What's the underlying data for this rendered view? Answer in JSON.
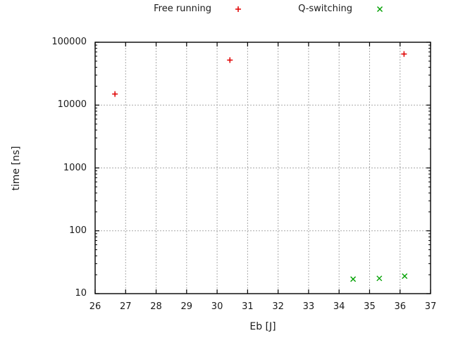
{
  "chart_data": {
    "type": "scatter",
    "title": "",
    "xlabel": "Eb [J]",
    "ylabel": "time [ns]",
    "xlim": [
      26,
      37
    ],
    "ylim": [
      10,
      100000
    ],
    "xscale": "linear",
    "yscale": "log",
    "x_ticks": [
      26,
      27,
      28,
      29,
      30,
      31,
      32,
      33,
      34,
      35,
      36,
      37
    ],
    "y_ticks": [
      10,
      100,
      1000,
      10000,
      100000
    ],
    "grid": true,
    "legend_position": "top-center-outside",
    "colors": {
      "axis": "#000000",
      "grid": "#a8a8a8",
      "text": "#1a1a1a",
      "free_running": "#e00000",
      "q_switching": "#00a000"
    },
    "series": [
      {
        "name": "Free running",
        "marker": "plus",
        "color": "#e00000",
        "points": [
          [
            26.65,
            15000
          ],
          [
            30.42,
            52000
          ],
          [
            36.13,
            65000
          ]
        ]
      },
      {
        "name": "Q-switching",
        "marker": "cross",
        "color": "#00a000",
        "points": [
          [
            34.46,
            17
          ],
          [
            35.32,
            17.5
          ],
          [
            36.15,
            19
          ]
        ]
      }
    ]
  }
}
